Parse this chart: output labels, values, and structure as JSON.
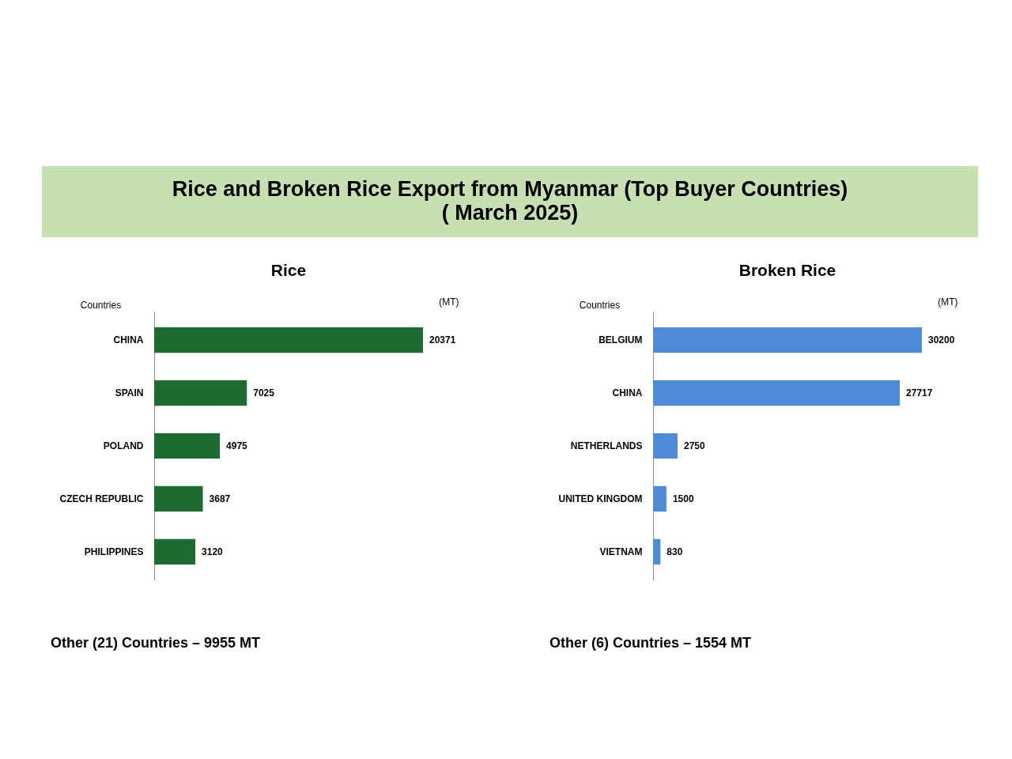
{
  "chart_data": [
    {
      "type": "other",
      "title": "Rice and Broken Rice Export from Myanmar (Top Buyer Countries)",
      "subtitle": "( March 2025)"
    },
    {
      "type": "bar",
      "orientation": "horizontal",
      "title": "Rice",
      "ylabel": "Countries",
      "xlabel": "(MT)",
      "categories": [
        "CHINA",
        "SPAIN",
        "POLAND",
        "CZECH REPUBLIC",
        "PHILIPPINES"
      ],
      "values": [
        20371,
        7025,
        4975,
        3687,
        3120
      ],
      "color": "#1e6b32",
      "data_labels": true,
      "tick_labels": "y",
      "annotations": [
        "Other (21) Countries – 9955 MT"
      ]
    },
    {
      "type": "bar",
      "orientation": "horizontal",
      "title": "Broken Rice",
      "ylabel": "Countries",
      "xlabel": "(MT)",
      "categories": [
        "BELGIUM",
        "CHINA",
        "NETHERLANDS",
        "UNITED KINGDOM",
        "VIETNAM"
      ],
      "values": [
        30200,
        27717,
        2750,
        1500,
        830
      ],
      "color": "#4f8ad6",
      "data_labels": true,
      "tick_labels": "y",
      "annotations": [
        "Other (6) Countries – 1554 MT"
      ]
    }
  ]
}
